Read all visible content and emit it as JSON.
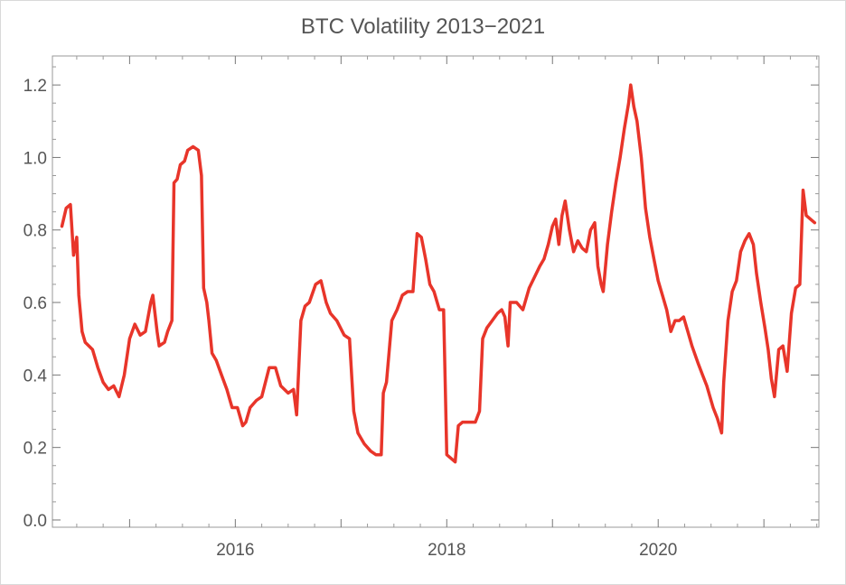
{
  "chart_data": {
    "type": "line",
    "title": "BTC Volatility 2013−2021",
    "xlabel": "",
    "ylabel": "",
    "xlim": [
      2014.27,
      2021.52
    ],
    "ylim": [
      -0.02,
      1.28
    ],
    "x_ticks": [
      {
        "value": 2016,
        "label": "2016"
      },
      {
        "value": 2018,
        "label": "2018"
      },
      {
        "value": 2020,
        "label": "2020"
      }
    ],
    "x_minor_ticks": [
      2015,
      2017,
      2019,
      2021
    ],
    "y_ticks": [
      {
        "value": 0.0,
        "label": "0.0"
      },
      {
        "value": 0.2,
        "label": "0.2"
      },
      {
        "value": 0.4,
        "label": "0.4"
      },
      {
        "value": 0.6,
        "label": "0.6"
      },
      {
        "value": 0.8,
        "label": "0.8"
      },
      {
        "value": 1.0,
        "label": "1.0"
      },
      {
        "value": 1.2,
        "label": "1.2"
      }
    ],
    "grid": false,
    "series": [
      {
        "color": "#e8352a",
        "points": [
          [
            2014.36,
            0.81
          ],
          [
            2014.4,
            0.86
          ],
          [
            2014.44,
            0.87
          ],
          [
            2014.47,
            0.73
          ],
          [
            2014.5,
            0.78
          ],
          [
            2014.52,
            0.62
          ],
          [
            2014.55,
            0.52
          ],
          [
            2014.58,
            0.49
          ],
          [
            2014.65,
            0.47
          ],
          [
            2014.7,
            0.42
          ],
          [
            2014.75,
            0.38
          ],
          [
            2014.8,
            0.36
          ],
          [
            2014.85,
            0.37
          ],
          [
            2014.9,
            0.34
          ],
          [
            2014.95,
            0.4
          ],
          [
            2015.0,
            0.5
          ],
          [
            2015.05,
            0.54
          ],
          [
            2015.1,
            0.51
          ],
          [
            2015.15,
            0.52
          ],
          [
            2015.2,
            0.6
          ],
          [
            2015.22,
            0.62
          ],
          [
            2015.26,
            0.52
          ],
          [
            2015.28,
            0.48
          ],
          [
            2015.33,
            0.49
          ],
          [
            2015.36,
            0.52
          ],
          [
            2015.4,
            0.55
          ],
          [
            2015.42,
            0.93
          ],
          [
            2015.45,
            0.94
          ],
          [
            2015.48,
            0.98
          ],
          [
            2015.52,
            0.99
          ],
          [
            2015.55,
            1.02
          ],
          [
            2015.6,
            1.03
          ],
          [
            2015.65,
            1.02
          ],
          [
            2015.68,
            0.95
          ],
          [
            2015.7,
            0.64
          ],
          [
            2015.73,
            0.6
          ],
          [
            2015.75,
            0.55
          ],
          [
            2015.78,
            0.46
          ],
          [
            2015.82,
            0.44
          ],
          [
            2015.87,
            0.4
          ],
          [
            2015.92,
            0.36
          ],
          [
            2015.97,
            0.31
          ],
          [
            2016.02,
            0.31
          ],
          [
            2016.07,
            0.26
          ],
          [
            2016.1,
            0.27
          ],
          [
            2016.14,
            0.31
          ],
          [
            2016.2,
            0.33
          ],
          [
            2016.25,
            0.34
          ],
          [
            2016.32,
            0.42
          ],
          [
            2016.38,
            0.42
          ],
          [
            2016.43,
            0.37
          ],
          [
            2016.5,
            0.35
          ],
          [
            2016.55,
            0.36
          ],
          [
            2016.58,
            0.29
          ],
          [
            2016.62,
            0.55
          ],
          [
            2016.66,
            0.59
          ],
          [
            2016.7,
            0.6
          ],
          [
            2016.76,
            0.65
          ],
          [
            2016.81,
            0.66
          ],
          [
            2016.86,
            0.6
          ],
          [
            2016.9,
            0.57
          ],
          [
            2016.96,
            0.55
          ],
          [
            2017.03,
            0.51
          ],
          [
            2017.08,
            0.5
          ],
          [
            2017.12,
            0.3
          ],
          [
            2017.16,
            0.24
          ],
          [
            2017.22,
            0.21
          ],
          [
            2017.28,
            0.19
          ],
          [
            2017.33,
            0.18
          ],
          [
            2017.38,
            0.18
          ],
          [
            2017.4,
            0.35
          ],
          [
            2017.43,
            0.38
          ],
          [
            2017.48,
            0.55
          ],
          [
            2017.53,
            0.58
          ],
          [
            2017.58,
            0.62
          ],
          [
            2017.63,
            0.63
          ],
          [
            2017.68,
            0.63
          ],
          [
            2017.72,
            0.79
          ],
          [
            2017.76,
            0.78
          ],
          [
            2017.8,
            0.72
          ],
          [
            2017.84,
            0.65
          ],
          [
            2017.88,
            0.63
          ],
          [
            2017.93,
            0.58
          ],
          [
            2017.97,
            0.58
          ],
          [
            2018.0,
            0.18
          ],
          [
            2018.04,
            0.17
          ],
          [
            2018.08,
            0.16
          ],
          [
            2018.11,
            0.26
          ],
          [
            2018.15,
            0.27
          ],
          [
            2018.2,
            0.27
          ],
          [
            2018.27,
            0.27
          ],
          [
            2018.31,
            0.3
          ],
          [
            2018.34,
            0.5
          ],
          [
            2018.38,
            0.53
          ],
          [
            2018.43,
            0.55
          ],
          [
            2018.48,
            0.57
          ],
          [
            2018.52,
            0.58
          ],
          [
            2018.55,
            0.56
          ],
          [
            2018.58,
            0.48
          ],
          [
            2018.6,
            0.6
          ],
          [
            2018.66,
            0.6
          ],
          [
            2018.72,
            0.58
          ],
          [
            2018.78,
            0.64
          ],
          [
            2018.83,
            0.67
          ],
          [
            2018.88,
            0.7
          ],
          [
            2018.92,
            0.72
          ],
          [
            2018.96,
            0.76
          ],
          [
            2019.0,
            0.81
          ],
          [
            2019.03,
            0.83
          ],
          [
            2019.06,
            0.76
          ],
          [
            2019.09,
            0.84
          ],
          [
            2019.12,
            0.88
          ],
          [
            2019.16,
            0.8
          ],
          [
            2019.2,
            0.74
          ],
          [
            2019.24,
            0.77
          ],
          [
            2019.28,
            0.75
          ],
          [
            2019.32,
            0.74
          ],
          [
            2019.36,
            0.8
          ],
          [
            2019.4,
            0.82
          ],
          [
            2019.43,
            0.7
          ],
          [
            2019.46,
            0.65
          ],
          [
            2019.48,
            0.63
          ],
          [
            2019.52,
            0.76
          ],
          [
            2019.56,
            0.85
          ],
          [
            2019.6,
            0.93
          ],
          [
            2019.64,
            1.0
          ],
          [
            2019.68,
            1.08
          ],
          [
            2019.72,
            1.15
          ],
          [
            2019.74,
            1.2
          ],
          [
            2019.77,
            1.14
          ],
          [
            2019.8,
            1.1
          ],
          [
            2019.84,
            1.0
          ],
          [
            2019.88,
            0.86
          ],
          [
            2019.92,
            0.78
          ],
          [
            2019.96,
            0.72
          ],
          [
            2020.0,
            0.66
          ],
          [
            2020.04,
            0.62
          ],
          [
            2020.08,
            0.58
          ],
          [
            2020.12,
            0.52
          ],
          [
            2020.16,
            0.55
          ],
          [
            2020.2,
            0.55
          ],
          [
            2020.24,
            0.56
          ],
          [
            2020.28,
            0.52
          ],
          [
            2020.32,
            0.48
          ],
          [
            2020.38,
            0.43
          ],
          [
            2020.42,
            0.4
          ],
          [
            2020.46,
            0.37
          ],
          [
            2020.52,
            0.31
          ],
          [
            2020.56,
            0.28
          ],
          [
            2020.6,
            0.24
          ],
          [
            2020.62,
            0.38
          ],
          [
            2020.66,
            0.55
          ],
          [
            2020.7,
            0.63
          ],
          [
            2020.74,
            0.66
          ],
          [
            2020.78,
            0.74
          ],
          [
            2020.82,
            0.77
          ],
          [
            2020.86,
            0.79
          ],
          [
            2020.9,
            0.76
          ],
          [
            2020.93,
            0.68
          ],
          [
            2020.97,
            0.6
          ],
          [
            2021.01,
            0.53
          ],
          [
            2021.04,
            0.47
          ],
          [
            2021.07,
            0.39
          ],
          [
            2021.1,
            0.34
          ],
          [
            2021.14,
            0.47
          ],
          [
            2021.18,
            0.48
          ],
          [
            2021.22,
            0.41
          ],
          [
            2021.26,
            0.57
          ],
          [
            2021.3,
            0.64
          ],
          [
            2021.34,
            0.65
          ],
          [
            2021.37,
            0.91
          ],
          [
            2021.4,
            0.84
          ],
          [
            2021.44,
            0.83
          ],
          [
            2021.48,
            0.82
          ]
        ]
      }
    ]
  }
}
